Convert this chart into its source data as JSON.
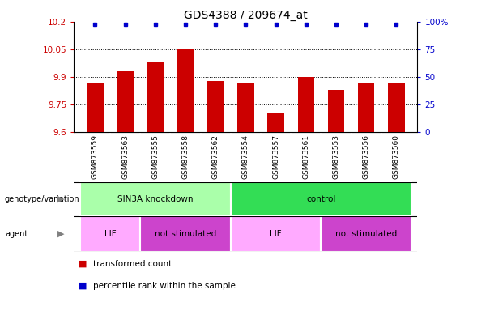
{
  "title": "GDS4388 / 209674_at",
  "samples": [
    "GSM873559",
    "GSM873563",
    "GSM873555",
    "GSM873558",
    "GSM873562",
    "GSM873554",
    "GSM873557",
    "GSM873561",
    "GSM873553",
    "GSM873556",
    "GSM873560"
  ],
  "bar_values": [
    9.87,
    9.93,
    9.98,
    10.05,
    9.88,
    9.87,
    9.7,
    9.9,
    9.83,
    9.87,
    9.87
  ],
  "percentile_values": [
    100,
    100,
    100,
    100,
    100,
    100,
    100,
    100,
    100,
    100,
    100
  ],
  "ylim_left": [
    9.6,
    10.2
  ],
  "yticks_left": [
    9.6,
    9.75,
    9.9,
    10.05,
    10.2
  ],
  "yticks_right": [
    0,
    25,
    50,
    75,
    100
  ],
  "ylim_right": [
    0,
    100
  ],
  "bar_color": "#cc0000",
  "percentile_color": "#0000cc",
  "bar_width": 0.55,
  "genotype_groups": [
    {
      "label": "SIN3A knockdown",
      "start": 0,
      "end": 5,
      "color": "#aaffaa"
    },
    {
      "label": "control",
      "start": 5,
      "end": 11,
      "color": "#33dd55"
    }
  ],
  "agent_groups": [
    {
      "label": "LIF",
      "start": 0,
      "end": 2,
      "color": "#ffaaff"
    },
    {
      "label": "not stimulated",
      "start": 2,
      "end": 5,
      "color": "#cc44cc"
    },
    {
      "label": "LIF",
      "start": 5,
      "end": 8,
      "color": "#ffaaff"
    },
    {
      "label": "not stimulated",
      "start": 8,
      "end": 11,
      "color": "#cc44cc"
    }
  ],
  "title_fontsize": 10,
  "tick_fontsize": 7.5,
  "sample_fontsize": 6.5,
  "annot_fontsize": 7.5,
  "legend_fontsize": 7.5,
  "gray_color": "#cccccc",
  "white_color": "#ffffff"
}
